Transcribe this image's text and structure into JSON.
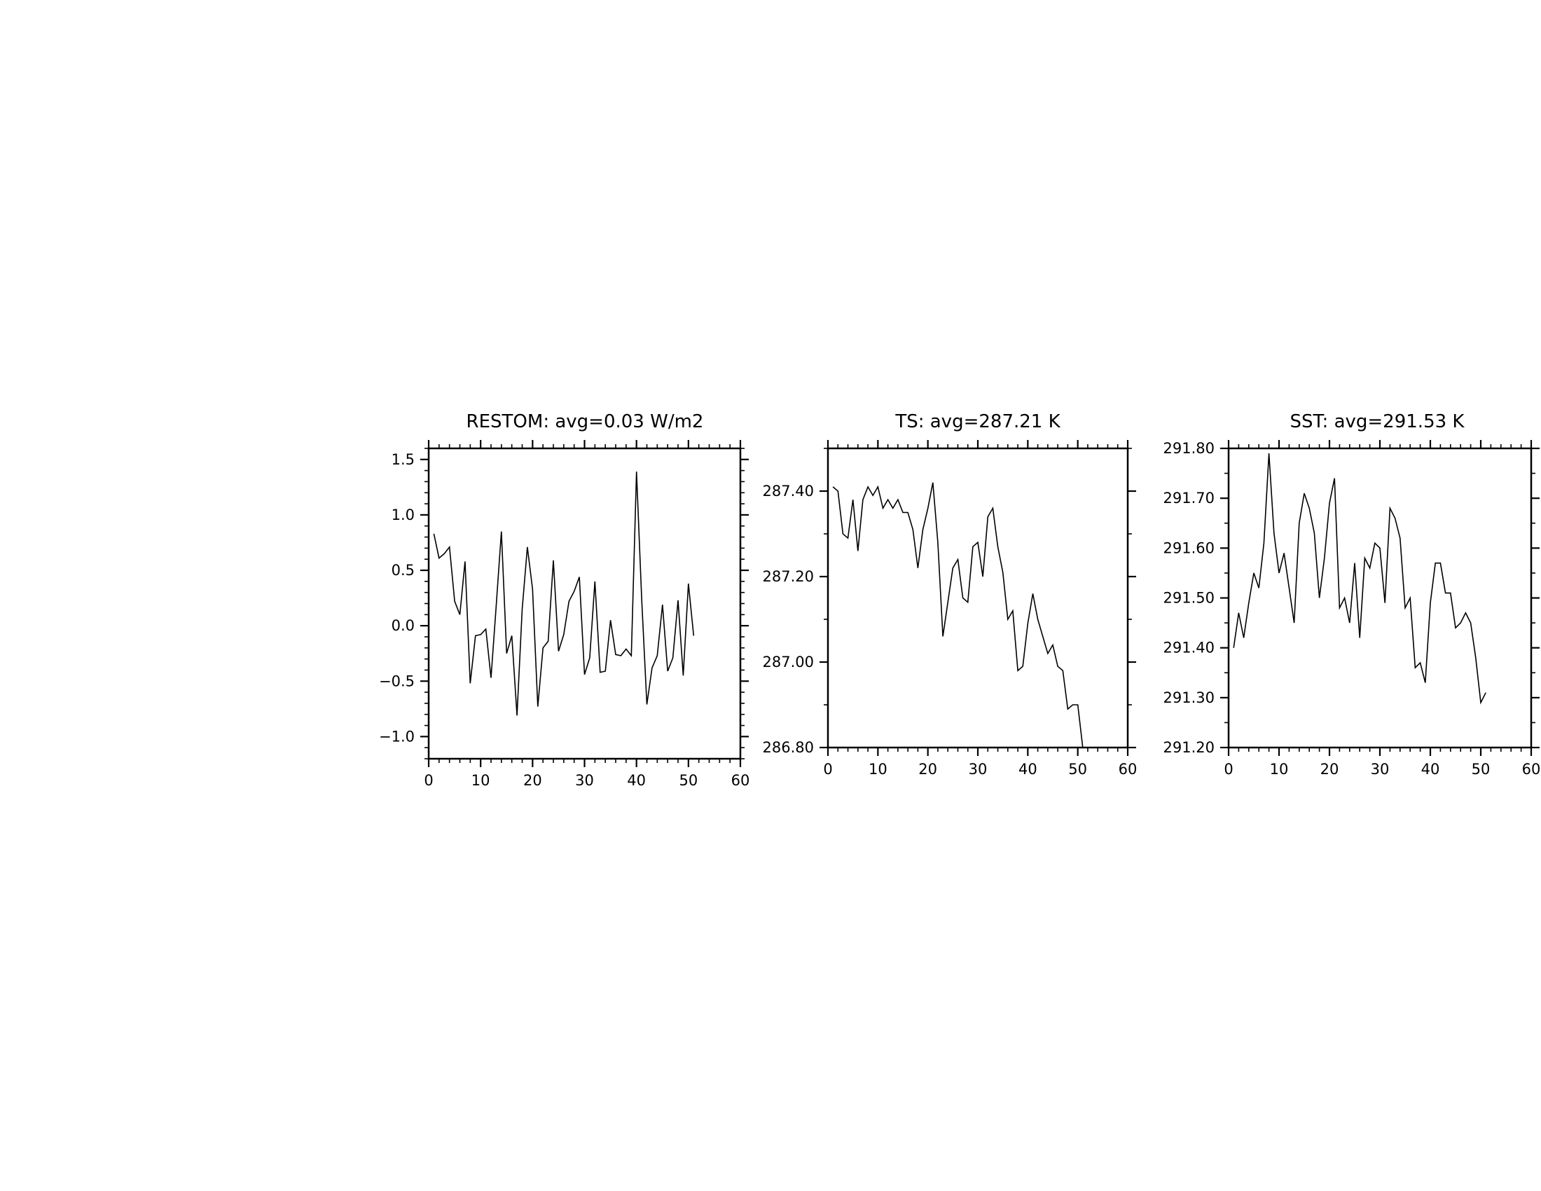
{
  "chart_data": [
    {
      "type": "line",
      "title": "RESTOM: avg=0.03 W/m2",
      "xlabel": "",
      "ylabel": "",
      "xlim": [
        0,
        60
      ],
      "ylim": [
        -1.2,
        1.6
      ],
      "xticks": [
        0,
        10,
        20,
        30,
        40,
        50,
        60
      ],
      "xtick_labels": [
        "0",
        "10",
        "20",
        "30",
        "40",
        "50",
        "60"
      ],
      "yticks": [
        -1.0,
        -0.5,
        0.0,
        0.5,
        1.0,
        1.5
      ],
      "ytick_labels": [
        "−1.0",
        "−0.5",
        "0.0",
        "0.5",
        "1.0",
        "1.5"
      ],
      "minor_x_step": 2,
      "minor_y_step": 0.1,
      "grid": false,
      "line_color": "#000000",
      "x": [
        1,
        2,
        3,
        4,
        5,
        6,
        7,
        8,
        9,
        10,
        11,
        12,
        13,
        14,
        15,
        16,
        17,
        18,
        19,
        20,
        21,
        22,
        23,
        24,
        25,
        26,
        27,
        28,
        29,
        30,
        31,
        32,
        33,
        34,
        35,
        36,
        37,
        38,
        39,
        40,
        41,
        42,
        43,
        44,
        45,
        46,
        47,
        48,
        49,
        50,
        51
      ],
      "y": [
        0.83,
        0.61,
        0.65,
        0.71,
        0.22,
        0.1,
        0.58,
        -0.52,
        -0.09,
        -0.08,
        -0.03,
        -0.47,
        0.18,
        0.85,
        -0.25,
        -0.09,
        -0.81,
        0.15,
        0.71,
        0.33,
        -0.73,
        -0.2,
        -0.14,
        0.59,
        -0.23,
        -0.08,
        0.22,
        0.31,
        0.44,
        -0.44,
        -0.29,
        0.4,
        -0.42,
        -0.41,
        0.05,
        -0.26,
        -0.27,
        -0.21,
        -0.27,
        1.39,
        0.24,
        -0.71,
        -0.38,
        -0.27,
        0.19,
        -0.41,
        -0.29,
        0.23,
        -0.45,
        0.38,
        -0.09
      ]
    },
    {
      "type": "line",
      "title": "TS: avg=287.21 K",
      "xlabel": "",
      "ylabel": "",
      "xlim": [
        0,
        60
      ],
      "ylim": [
        286.8,
        287.5
      ],
      "xticks": [
        0,
        10,
        20,
        30,
        40,
        50,
        60
      ],
      "xtick_labels": [
        "0",
        "10",
        "20",
        "30",
        "40",
        "50",
        "60"
      ],
      "yticks": [
        286.8,
        287.0,
        287.2,
        287.4
      ],
      "ytick_labels": [
        "286.80",
        "287.00",
        "287.20",
        "287.40"
      ],
      "minor_x_step": 2,
      "minor_y_step": 0.1,
      "grid": false,
      "line_color": "#000000",
      "x": [
        1,
        2,
        3,
        4,
        5,
        6,
        7,
        8,
        9,
        10,
        11,
        12,
        13,
        14,
        15,
        16,
        17,
        18,
        19,
        20,
        21,
        22,
        23,
        24,
        25,
        26,
        27,
        28,
        29,
        30,
        31,
        32,
        33,
        34,
        35,
        36,
        37,
        38,
        39,
        40,
        41,
        42,
        43,
        44,
        45,
        46,
        47,
        48,
        49,
        50,
        51
      ],
      "y": [
        287.41,
        287.4,
        287.3,
        287.29,
        287.38,
        287.26,
        287.38,
        287.41,
        287.39,
        287.41,
        287.36,
        287.38,
        287.36,
        287.38,
        287.35,
        287.35,
        287.31,
        287.22,
        287.31,
        287.36,
        287.42,
        287.28,
        287.06,
        287.14,
        287.22,
        287.24,
        287.15,
        287.14,
        287.27,
        287.28,
        287.2,
        287.34,
        287.36,
        287.27,
        287.21,
        287.1,
        287.12,
        286.98,
        286.99,
        287.09,
        287.16,
        287.1,
        287.06,
        287.02,
        287.04,
        286.99,
        286.98,
        286.89,
        286.9,
        286.9,
        286.8
      ]
    },
    {
      "type": "line",
      "title": "SST: avg=291.53 K",
      "xlabel": "",
      "ylabel": "",
      "xlim": [
        0,
        60
      ],
      "ylim": [
        291.2,
        291.8
      ],
      "xticks": [
        0,
        10,
        20,
        30,
        40,
        50,
        60
      ],
      "xtick_labels": [
        "0",
        "10",
        "20",
        "30",
        "40",
        "50",
        "60"
      ],
      "yticks": [
        291.2,
        291.3,
        291.4,
        291.5,
        291.6,
        291.7,
        291.8
      ],
      "ytick_labels": [
        "291.20",
        "291.30",
        "291.40",
        "291.50",
        "291.60",
        "291.70",
        "291.80"
      ],
      "minor_x_step": 2,
      "minor_y_step": 0.05,
      "grid": false,
      "line_color": "#000000",
      "x": [
        1,
        2,
        3,
        4,
        5,
        6,
        7,
        8,
        9,
        10,
        11,
        12,
        13,
        14,
        15,
        16,
        17,
        18,
        19,
        20,
        21,
        22,
        23,
        24,
        25,
        26,
        27,
        28,
        29,
        30,
        31,
        32,
        33,
        34,
        35,
        36,
        37,
        38,
        39,
        40,
        41,
        42,
        43,
        44,
        45,
        46,
        47,
        48,
        49,
        50,
        51
      ],
      "y": [
        291.4,
        291.47,
        291.42,
        291.49,
        291.55,
        291.52,
        291.61,
        291.79,
        291.63,
        291.55,
        291.59,
        291.52,
        291.45,
        291.65,
        291.71,
        291.68,
        291.63,
        291.5,
        291.58,
        291.69,
        291.74,
        291.48,
        291.5,
        291.45,
        291.57,
        291.42,
        291.58,
        291.56,
        291.61,
        291.6,
        291.49,
        291.68,
        291.66,
        291.62,
        291.48,
        291.5,
        291.36,
        291.37,
        291.33,
        291.49,
        291.57,
        291.57,
        291.51,
        291.51,
        291.44,
        291.45,
        291.47,
        291.45,
        291.38,
        291.29,
        291.31
      ]
    }
  ]
}
